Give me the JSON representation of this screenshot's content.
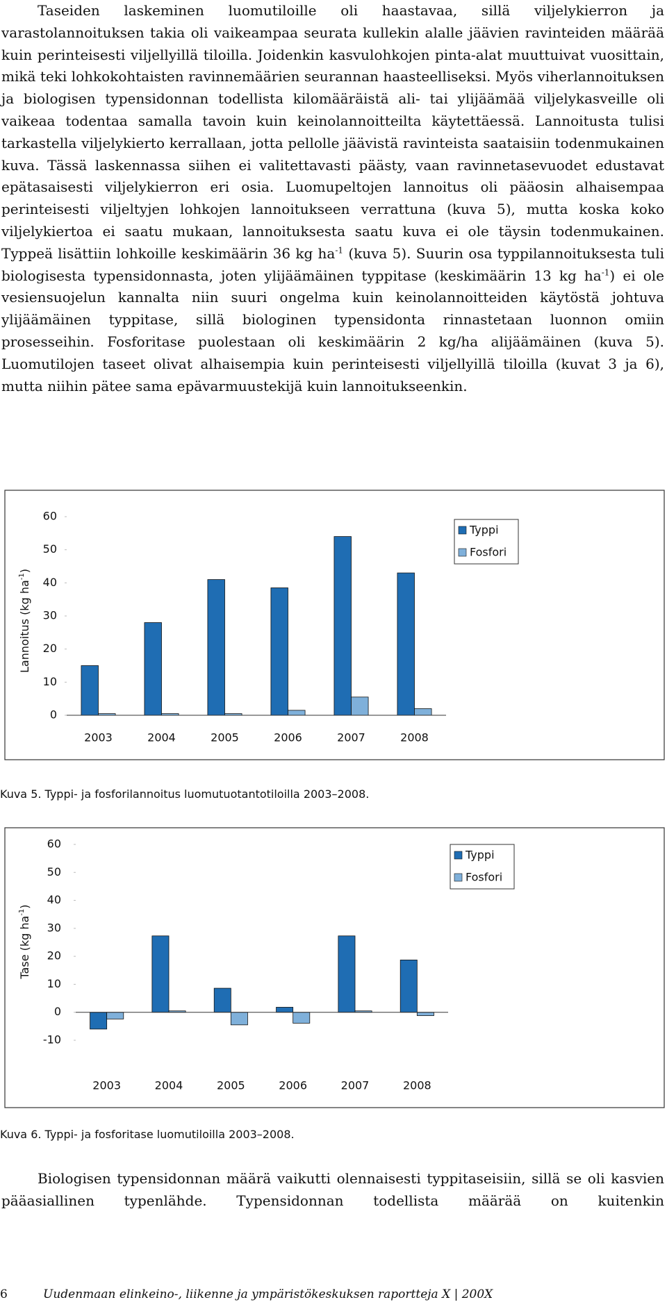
{
  "paragraphs": [
    [
      "Taseiden laskeminen luomutiloille oli haastavaa, sillä viljelykierron ja varastolannoituksen takia oli vaikeampaa seurata kullekin alalle jäävien ravinteiden määrää kuin perinteisesti viljellyillä tiloilla. Joidenkin kasvulohkojen pinta-alat muuttuivat vuosittain, mikä teki lohkokohtaisten ravinnemäärien seurannan haasteelliseksi. Myös viherlannoituksen ja biologisen typensidonnan todellista kilomääräistä ali- tai ylijäämää viljelykasveille oli vaikeaa todentaa samalla tavoin kuin keinolannoitteilta käytettäessä. Lannoitusta tulisi tarkastella viljelykierto kerrallaan, jotta pellolle jäävistä ravinteista saataisiin todenmukainen kuva. Tässä laskennassa siihen ei valitettavasti päästy, vaan ravinnetasevuodet edustavat epätasaisesti viljelykierron eri osia. Luomupeltojen lannoitus oli pääosin alhaisempaa perinteisesti viljeltyjen lohkojen lannoitukseen verrattuna (kuva 5), mutta koska koko viljelykiertoa ei saatu mukaan, lannoituksesta saatu kuva ei ole täysin todenmukainen. Typpeä lisättiin lohkoille keskimäärin 36 kg ha",
      {
        "sup": "-1"
      },
      " (kuva 5). Suurin osa typpilannoituksesta tuli biologisesta typensidonnasta, joten ylijäämäinen typpitase (keskimäärin 13 kg ha",
      {
        "sup": "-1"
      },
      ") ei ole vesiensuojelun kannalta niin suuri ongelma kuin keinolannoitteiden käytöstä johtuva ylijäämäinen typpitase, sillä biologinen typensidonta rinnastetaan luonnon omiin prosesseihin. Fosforitase puolestaan oli keskimäärin 2 kg/ha alijäämäinen (kuva 5). Luomutilojen taseet olivat alhaisempia kuin perinteisesti viljellyillä tiloilla (kuvat 3 ja 6), mutta niihin pätee sama epävarmuustekijä kuin lannoitukseenkin."
    ],
    [
      "Biologisen typensidonnan määrä vaikutti olennaisesti typpitaseisiin, sillä se oli kasvien pääasiallinen typenlähde. Typensidonnan todellista määrää on kuitenkin"
    ]
  ],
  "chart_data": [
    {
      "type": "bar",
      "ylabel": [
        "Lannoitus (kg ha",
        {
          "sup": "-1"
        },
        ")"
      ],
      "categories": [
        "2003",
        "2004",
        "2005",
        "2006",
        "2007",
        "2008"
      ],
      "series": [
        {
          "name": "Typpi",
          "color": "#1f6db3",
          "values": [
            15,
            28,
            41,
            38.5,
            54,
            43
          ]
        },
        {
          "name": "Fosfori",
          "color": "#7fb0da",
          "values": [
            0.5,
            0.5,
            0.5,
            1.5,
            5.5,
            2
          ]
        }
      ],
      "ylim": [
        0,
        60
      ],
      "yticks": [
        0,
        10,
        20,
        30,
        40,
        50,
        60
      ],
      "legend": "right"
    },
    {
      "type": "bar",
      "ylabel": [
        "Tase (kg ha",
        {
          "sup": "-1"
        },
        ")"
      ],
      "categories": [
        "2003",
        "2004",
        "2005",
        "2006",
        "2007",
        "2008"
      ],
      "series": [
        {
          "name": "Typpi",
          "color": "#1f6db3",
          "values": [
            -6,
            27.3,
            8.6,
            1.8,
            27.3,
            18.7
          ]
        },
        {
          "name": "Fosfori",
          "color": "#7fb0da",
          "values": [
            -2.4,
            0.5,
            -4.5,
            -3.9,
            0.5,
            -1.2
          ]
        }
      ],
      "ylim": [
        -10,
        60
      ],
      "yticks": [
        -10,
        0,
        10,
        20,
        30,
        40,
        50,
        60
      ],
      "legend": "right"
    }
  ],
  "captions": [
    "Kuva 5. Typpi- ja fosforilannoitus luomutuotantotiloilla 2003–2008.",
    "Kuva 6. Typpi- ja fosforitase luomutiloilla 2003–2008."
  ],
  "footer": {
    "page": "6",
    "text": "Uudenmaan elinkeino-, liikenne ja ympäristökeskuksen raportteja X | 200X"
  }
}
